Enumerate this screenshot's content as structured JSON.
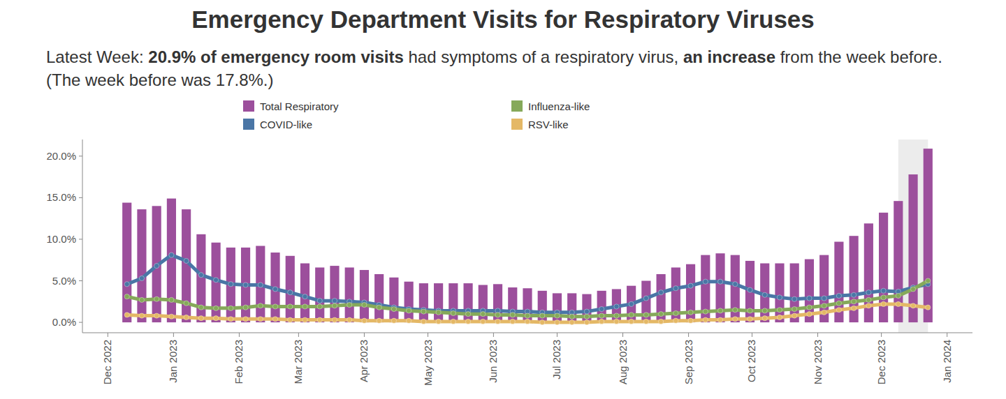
{
  "chart_data": {
    "type": "bar",
    "title": "Emergency Department Visits for Respiratory Viruses",
    "subtitle": [
      "Latest Week: ",
      "20.9% of emergency room visits",
      " had symptoms of a respiratory virus, ",
      "an increase",
      " from the week before. (The week before was 17.8%.)"
    ],
    "x": [
      0,
      1,
      2,
      3,
      4,
      5,
      6,
      7,
      8,
      9,
      10,
      11,
      12,
      13,
      14,
      15,
      16,
      17,
      18,
      19,
      20,
      21,
      22,
      23,
      24,
      25,
      26,
      27,
      28,
      29,
      30,
      31,
      32,
      33,
      34,
      35,
      36,
      37,
      38,
      39,
      40,
      41,
      42,
      43,
      44,
      45,
      46,
      47,
      48,
      49,
      50,
      51,
      52,
      53,
      54
    ],
    "series": [
      {
        "name": "Total Respiratory",
        "type": "bar",
        "color": "#9c4f9c",
        "values": [
          14.4,
          13.6,
          14.0,
          14.9,
          13.6,
          10.6,
          9.6,
          9.0,
          9.0,
          9.2,
          8.4,
          8.0,
          7.1,
          6.6,
          6.8,
          6.6,
          6.3,
          5.8,
          5.4,
          4.9,
          4.7,
          4.7,
          4.7,
          4.7,
          4.5,
          4.6,
          4.2,
          4.1,
          3.8,
          3.5,
          3.5,
          3.4,
          3.8,
          4.0,
          4.4,
          5.0,
          5.8,
          6.6,
          7.0,
          8.1,
          8.3,
          8.1,
          7.4,
          7.1,
          7.1,
          7.1,
          7.6,
          8.1,
          9.7,
          10.4,
          11.9,
          13.2,
          14.6,
          17.8,
          20.9
        ]
      },
      {
        "name": "COVID-like",
        "type": "line",
        "color": "#4a76a6",
        "marker": "circle",
        "values": [
          4.6,
          5.3,
          6.8,
          8.1,
          7.4,
          5.7,
          5.1,
          4.6,
          4.5,
          4.5,
          4.0,
          3.6,
          3.1,
          2.6,
          2.6,
          2.5,
          2.4,
          2.1,
          1.8,
          1.6,
          1.5,
          1.4,
          1.4,
          1.4,
          1.4,
          1.4,
          1.3,
          1.3,
          1.2,
          1.2,
          1.2,
          1.3,
          1.6,
          1.9,
          2.2,
          2.9,
          3.6,
          4.1,
          4.4,
          4.9,
          4.9,
          4.6,
          3.9,
          3.3,
          3.0,
          2.8,
          2.9,
          2.9,
          3.2,
          3.3,
          3.6,
          3.8,
          3.7,
          4.2,
          4.6
        ]
      },
      {
        "name": "Influenza-like",
        "type": "line",
        "color": "#86a95a",
        "marker": "circle",
        "values": [
          3.1,
          2.7,
          2.8,
          2.7,
          2.3,
          1.8,
          1.7,
          1.7,
          1.8,
          2.0,
          1.9,
          1.9,
          1.9,
          1.9,
          2.0,
          2.1,
          2.1,
          1.8,
          1.6,
          1.4,
          1.3,
          1.2,
          1.1,
          1.0,
          1.0,
          0.9,
          0.9,
          0.8,
          0.8,
          0.8,
          0.7,
          0.7,
          0.8,
          0.8,
          0.9,
          0.9,
          1.0,
          1.1,
          1.2,
          1.3,
          1.4,
          1.5,
          1.4,
          1.4,
          1.5,
          1.6,
          1.8,
          2.0,
          2.3,
          2.5,
          2.7,
          3.0,
          3.2,
          4.0,
          5.0
        ]
      },
      {
        "name": "RSV-like",
        "type": "line",
        "color": "#e4b866",
        "marker": "circle",
        "values": [
          0.9,
          0.8,
          0.8,
          0.7,
          0.6,
          0.5,
          0.5,
          0.4,
          0.4,
          0.4,
          0.4,
          0.3,
          0.3,
          0.3,
          0.3,
          0.3,
          0.2,
          0.2,
          0.2,
          0.2,
          0.1,
          0.1,
          0.1,
          0.1,
          0.1,
          0.1,
          0.1,
          0.1,
          0.0,
          0.0,
          0.0,
          0.0,
          0.1,
          0.1,
          0.1,
          0.1,
          0.1,
          0.2,
          0.2,
          0.3,
          0.3,
          0.4,
          0.4,
          0.5,
          0.6,
          0.8,
          1.0,
          1.2,
          1.5,
          1.7,
          2.0,
          2.2,
          2.2,
          2.0,
          1.8
        ]
      }
    ],
    "xlim": [
      -3,
      57
    ],
    "xticks": [
      {
        "value": -1.29,
        "label": "Dec 2022"
      },
      {
        "value": 3.14,
        "label": "Jan 2023"
      },
      {
        "value": 7.57,
        "label": "Feb 2023"
      },
      {
        "value": 11.57,
        "label": "Mar 2023"
      },
      {
        "value": 16,
        "label": "Apr 2023"
      },
      {
        "value": 20.29,
        "label": "May 2023"
      },
      {
        "value": 24.71,
        "label": "Jun 2023"
      },
      {
        "value": 29,
        "label": "Jul 2023"
      },
      {
        "value": 33.43,
        "label": "Aug 2023"
      },
      {
        "value": 37.86,
        "label": "Sep 2023"
      },
      {
        "value": 42.14,
        "label": "Oct 2023"
      },
      {
        "value": 46.57,
        "label": "Nov 2023"
      },
      {
        "value": 50.86,
        "label": "Dec 2023"
      },
      {
        "value": 55.29,
        "label": "Jan 2024"
      }
    ],
    "ylim": [
      -1.25,
      22
    ],
    "yticks": [
      {
        "value": 0,
        "label": "0.0%"
      },
      {
        "value": 5,
        "label": "5.0%"
      },
      {
        "value": 10,
        "label": "10.0%"
      },
      {
        "value": 15,
        "label": "15.0%"
      },
      {
        "value": 20,
        "label": "20.0%"
      }
    ],
    "grid": false,
    "legend": "top"
  }
}
